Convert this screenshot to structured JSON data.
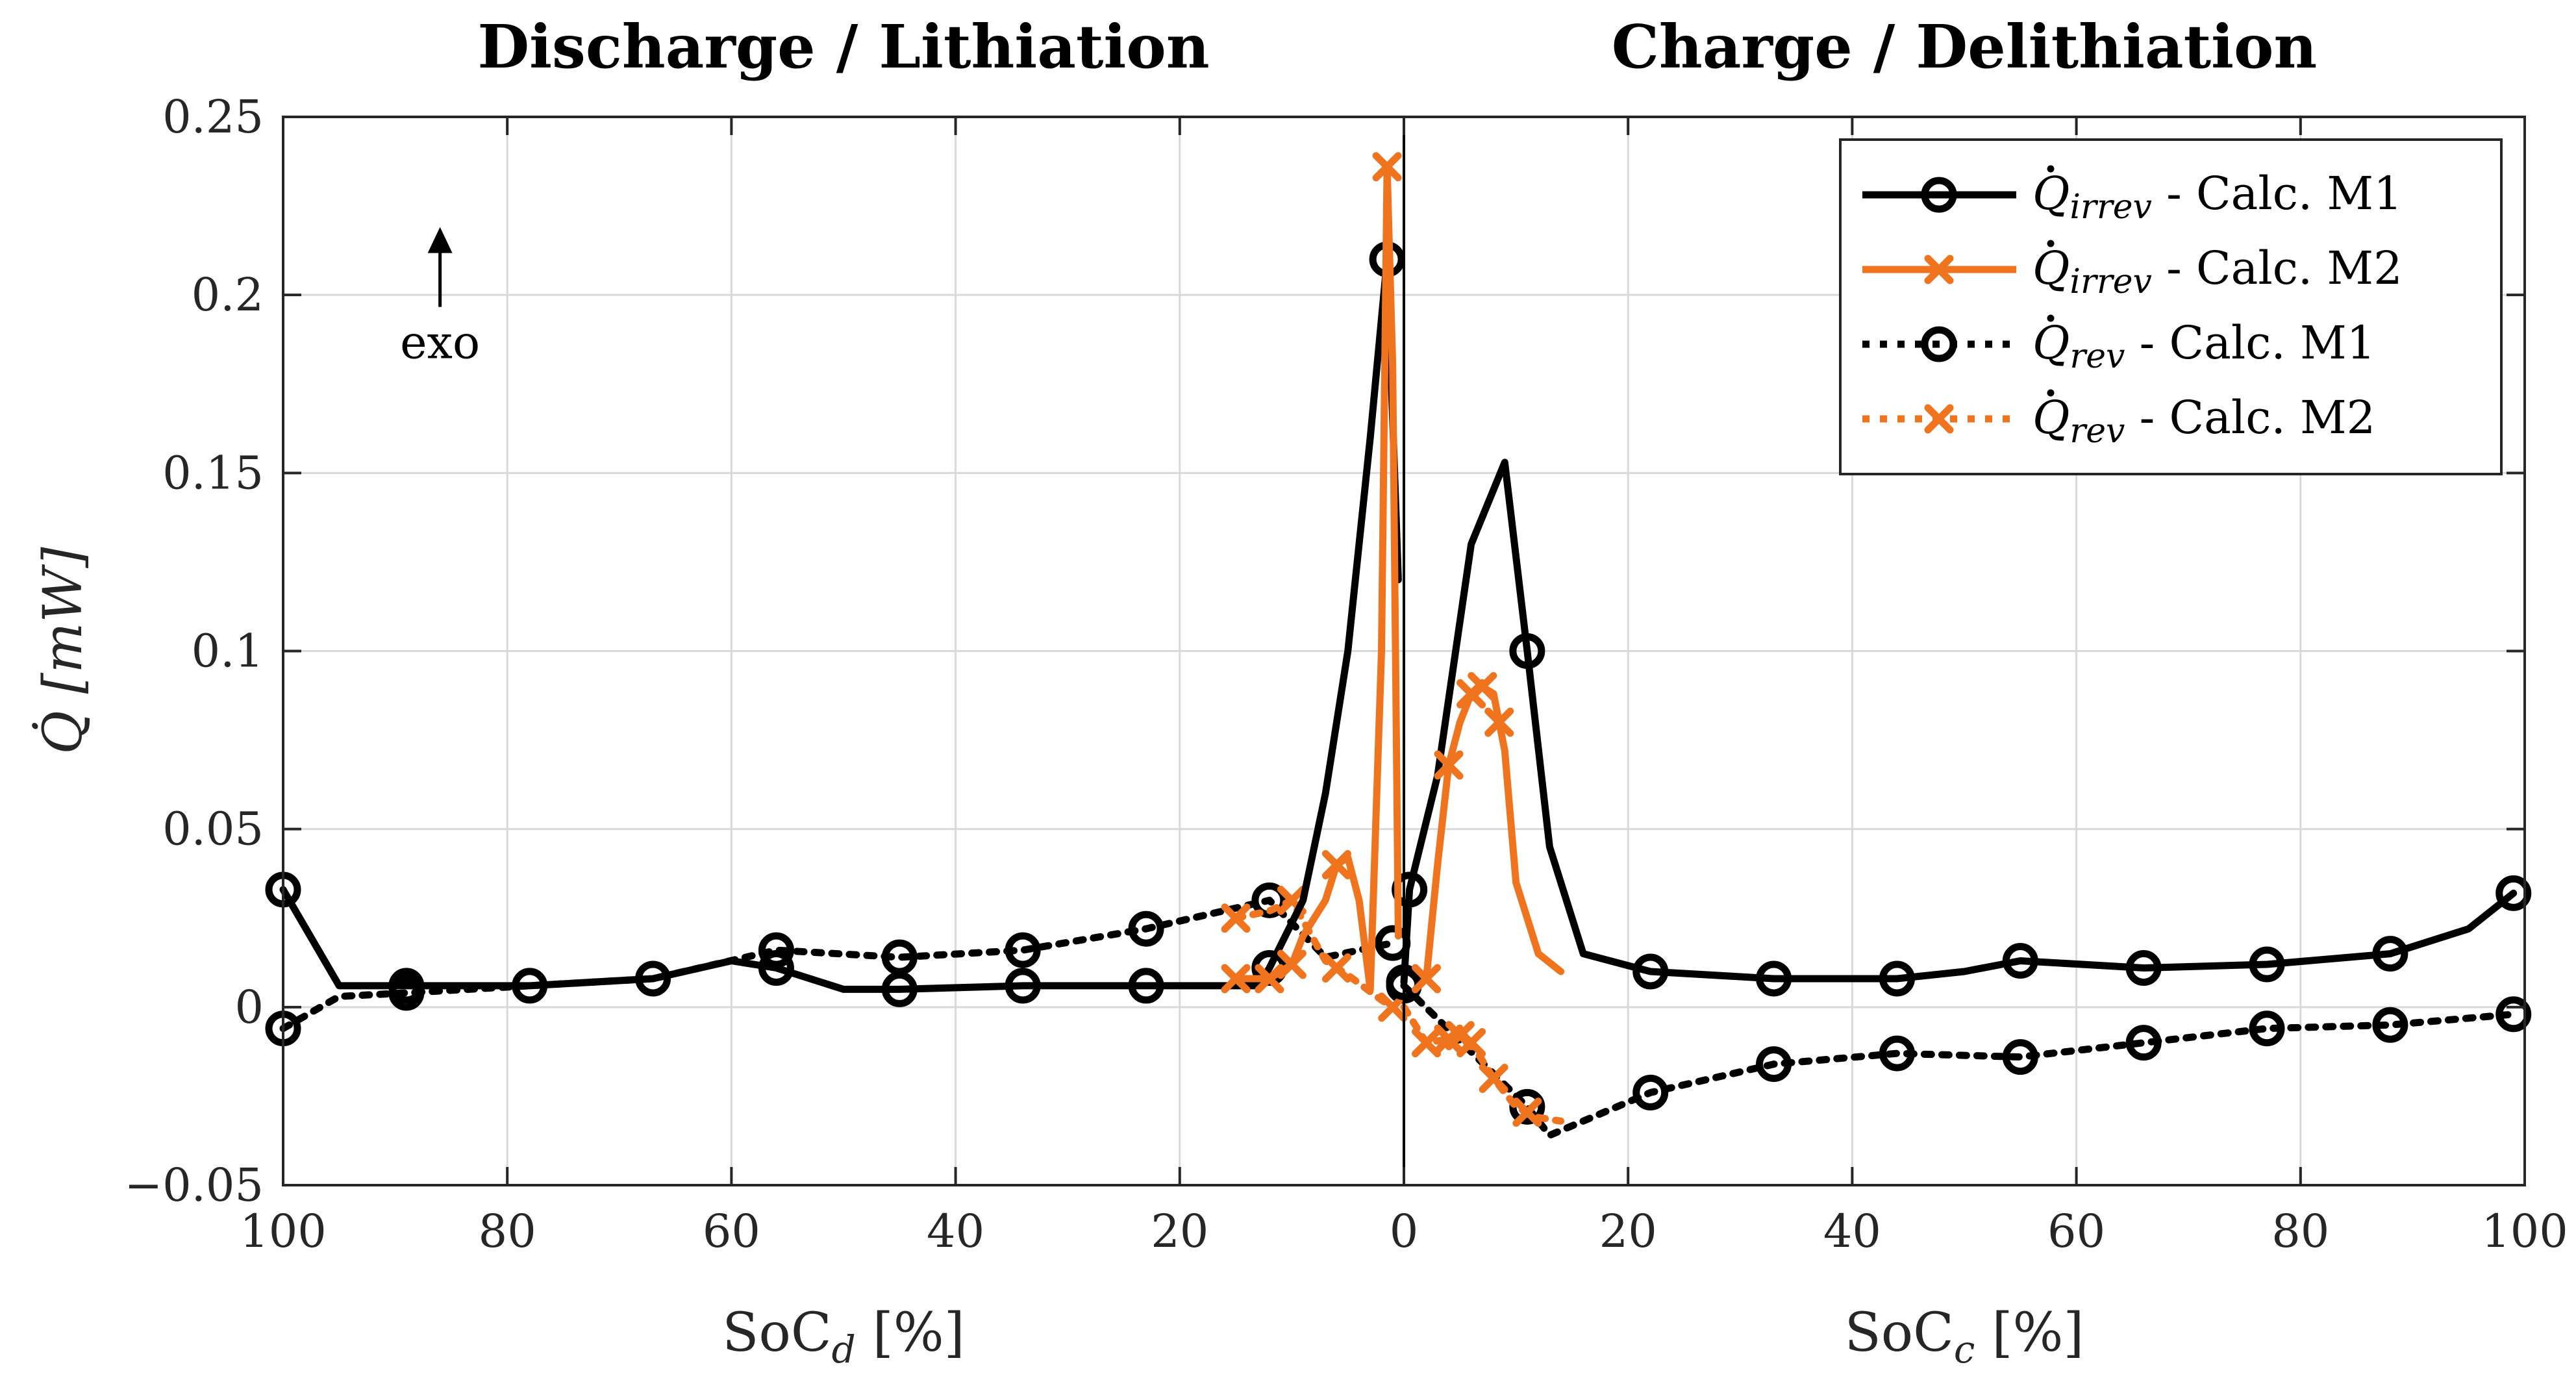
{
  "chart_data": {
    "type": "line",
    "panel_titles": [
      "Discharge / Lithiation",
      "Charge / Delithiation"
    ],
    "xlabel_left": {
      "base": "SoC",
      "sub": "d",
      "unit": " [%]"
    },
    "xlabel_right": {
      "base": "SoC",
      "sub": "c",
      "unit": " [%]"
    },
    "ylabel": "Q̇ [mW]",
    "ylim": [
      -0.05,
      0.25
    ],
    "y_ticks": [
      -0.05,
      0,
      0.05,
      0.1,
      0.15,
      0.2,
      0.25
    ],
    "y_tick_labels": [
      "−0.05",
      "0",
      "0.05",
      "0.1",
      "0.15",
      "0.2",
      "0.25"
    ],
    "x_left_ticks": [
      100,
      80,
      60,
      40,
      20,
      0
    ],
    "x_right_ticks": [
      0,
      20,
      40,
      60,
      80,
      100
    ],
    "grid": true,
    "annotation": {
      "text": "exo",
      "at": {
        "soc": 86,
        "side": "discharge",
        "q": 0.199
      }
    },
    "legend": {
      "placement": "top-right",
      "entries": [
        {
          "label_base": "Q",
          "label_sub": "irrev",
          "label_suffix": " - Calc. M1"
        },
        {
          "label_base": "Q",
          "label_sub": "irrev",
          "label_suffix": " - Calc. M2"
        },
        {
          "label_base": "Q",
          "label_sub": "rev",
          "label_suffix": " - Calc. M1"
        },
        {
          "label_base": "Q",
          "label_sub": "rev",
          "label_suffix": " - Calc. M2"
        }
      ]
    },
    "series": [
      {
        "name": "Q_irrev - Calc. M1",
        "color": "#000000",
        "style": "solid",
        "marker": "circle",
        "discharge": {
          "soc": [
            100,
            95,
            89,
            78,
            67,
            60,
            56,
            50,
            45,
            34,
            23,
            13,
            12,
            9,
            7,
            5,
            3,
            1.5,
            0.5
          ],
          "q": [
            0.033,
            0.006,
            0.006,
            0.006,
            0.008,
            0.013,
            0.011,
            0.005,
            0.005,
            0.006,
            0.006,
            0.006,
            0.011,
            0.03,
            0.06,
            0.1,
            0.16,
            0.21,
            0.12
          ]
        },
        "charge": {
          "soc": [
            0,
            0.5,
            3,
            6,
            9,
            11,
            13,
            16,
            22,
            33,
            44,
            50,
            55,
            66,
            77,
            88,
            95,
            99
          ],
          "q": [
            0.007,
            0.033,
            0.065,
            0.13,
            0.153,
            0.1,
            0.045,
            0.015,
            0.01,
            0.008,
            0.008,
            0.01,
            0.013,
            0.011,
            0.012,
            0.015,
            0.022,
            0.032
          ]
        },
        "markers_discharge_soc": [
          100,
          89,
          78,
          67,
          56,
          45,
          34,
          23,
          12,
          1.5
        ],
        "markers_charge_soc": [
          0,
          0.5,
          11,
          22,
          33,
          44,
          55,
          66,
          77,
          88,
          99
        ]
      },
      {
        "name": "Q_irrev - Calc. M2",
        "color": "#f0731e",
        "style": "solid",
        "marker": "x",
        "discharge": {
          "soc": [
            15,
            12,
            10,
            9,
            7,
            6,
            5,
            4,
            3,
            2,
            1.5,
            1,
            0.5
          ],
          "q": [
            0.008,
            0.008,
            0.012,
            0.02,
            0.03,
            0.04,
            0.042,
            0.03,
            0.005,
            0.1,
            0.236,
            0.18,
            0.02
          ]
        },
        "charge": {
          "soc": [
            2,
            3,
            4,
            5,
            6,
            7,
            8,
            9,
            10,
            12,
            14
          ],
          "q": [
            0.008,
            0.04,
            0.068,
            0.08,
            0.088,
            0.09,
            0.088,
            0.072,
            0.035,
            0.015,
            0.01
          ]
        },
        "markers_discharge_soc": [
          15,
          12,
          10,
          6,
          1.5
        ],
        "markers_charge_soc": [
          2,
          4,
          6,
          7,
          8.5
        ]
      },
      {
        "name": "Q_rev - Calc. M1",
        "color": "#000000",
        "style": "dotted",
        "marker": "circle",
        "discharge": {
          "soc": [
            100,
            95,
            89,
            78,
            67,
            56,
            45,
            34,
            23,
            12,
            7,
            1
          ],
          "q": [
            -0.006,
            0.003,
            0.004,
            0.006,
            0.008,
            0.016,
            0.014,
            0.016,
            0.022,
            0.03,
            0.014,
            0.018
          ]
        },
        "charge": {
          "soc": [
            0,
            11,
            13,
            22,
            33,
            44,
            55,
            66,
            77,
            88,
            99
          ],
          "q": [
            0.006,
            -0.028,
            -0.036,
            -0.024,
            -0.016,
            -0.013,
            -0.014,
            -0.01,
            -0.006,
            -0.005,
            -0.002
          ]
        },
        "markers_discharge_soc": [
          100,
          89,
          56,
          45,
          34,
          23,
          12,
          1
        ],
        "markers_charge_soc": [
          0,
          11,
          22,
          33,
          44,
          55,
          66,
          77,
          88,
          99
        ]
      },
      {
        "name": "Q_rev - Calc. M2",
        "color": "#f0731e",
        "style": "dotted",
        "marker": "x",
        "discharge": {
          "soc": [
            15,
            12,
            10,
            7,
            5,
            2,
            1
          ],
          "q": [
            0.025,
            0.027,
            0.03,
            0.013,
            0.009,
            0.002,
            0.0
          ]
        },
        "charge": {
          "soc": [
            0,
            2,
            4,
            5,
            6,
            8,
            10,
            12,
            14
          ],
          "q": [
            0.0,
            -0.01,
            -0.009,
            -0.008,
            -0.01,
            -0.02,
            -0.028,
            -0.031,
            -0.032
          ]
        },
        "markers_discharge_soc": [
          15,
          10,
          6,
          1
        ],
        "markers_charge_soc": [
          2,
          4,
          5,
          6,
          8,
          11
        ]
      }
    ]
  }
}
